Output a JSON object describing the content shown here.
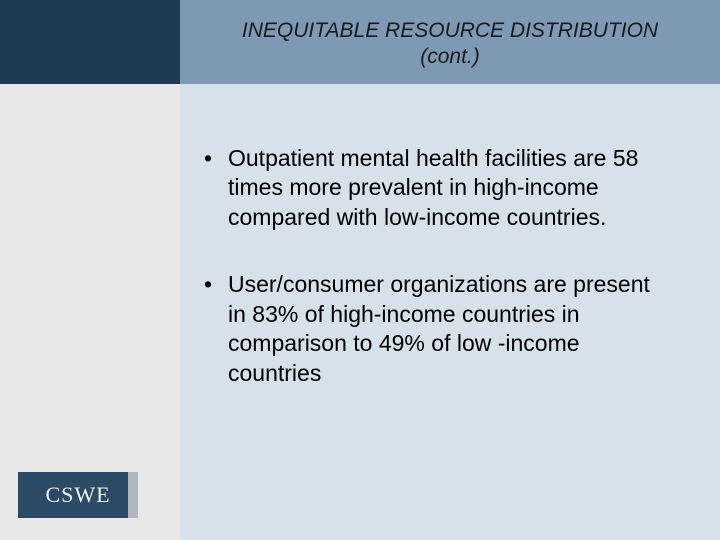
{
  "colors": {
    "left_top": "#1f3a54",
    "left_bottom": "#e8e8e8",
    "title_band": "#7d99b3",
    "body_bg": "#d6e1ea",
    "title_text": "#1a1a1a",
    "body_text": "#000000",
    "logo_border": "#2a4a66",
    "logo_text": "#f2f2f2",
    "logo_bg": "#2a4a66",
    "logo_bar": "#b0b7bd"
  },
  "layout": {
    "left_top_height": 84,
    "title_band_height": 84,
    "title_fontsize": 21,
    "body_fontsize": 23,
    "bullet_gap": 38,
    "logo_fontsize": 22
  },
  "title_line1": "INEQUITABLE RESOURCE DISTRIBUTION",
  "title_line2": "(cont.)",
  "bullets": [
    "Outpatient mental health facilities are 58 times more prevalent in high-income compared with low-income countries.",
    "User/consumer organizations are present in 83% of high-income countries in comparison to 49% of low -income countries"
  ],
  "logo_text": "CSWE"
}
